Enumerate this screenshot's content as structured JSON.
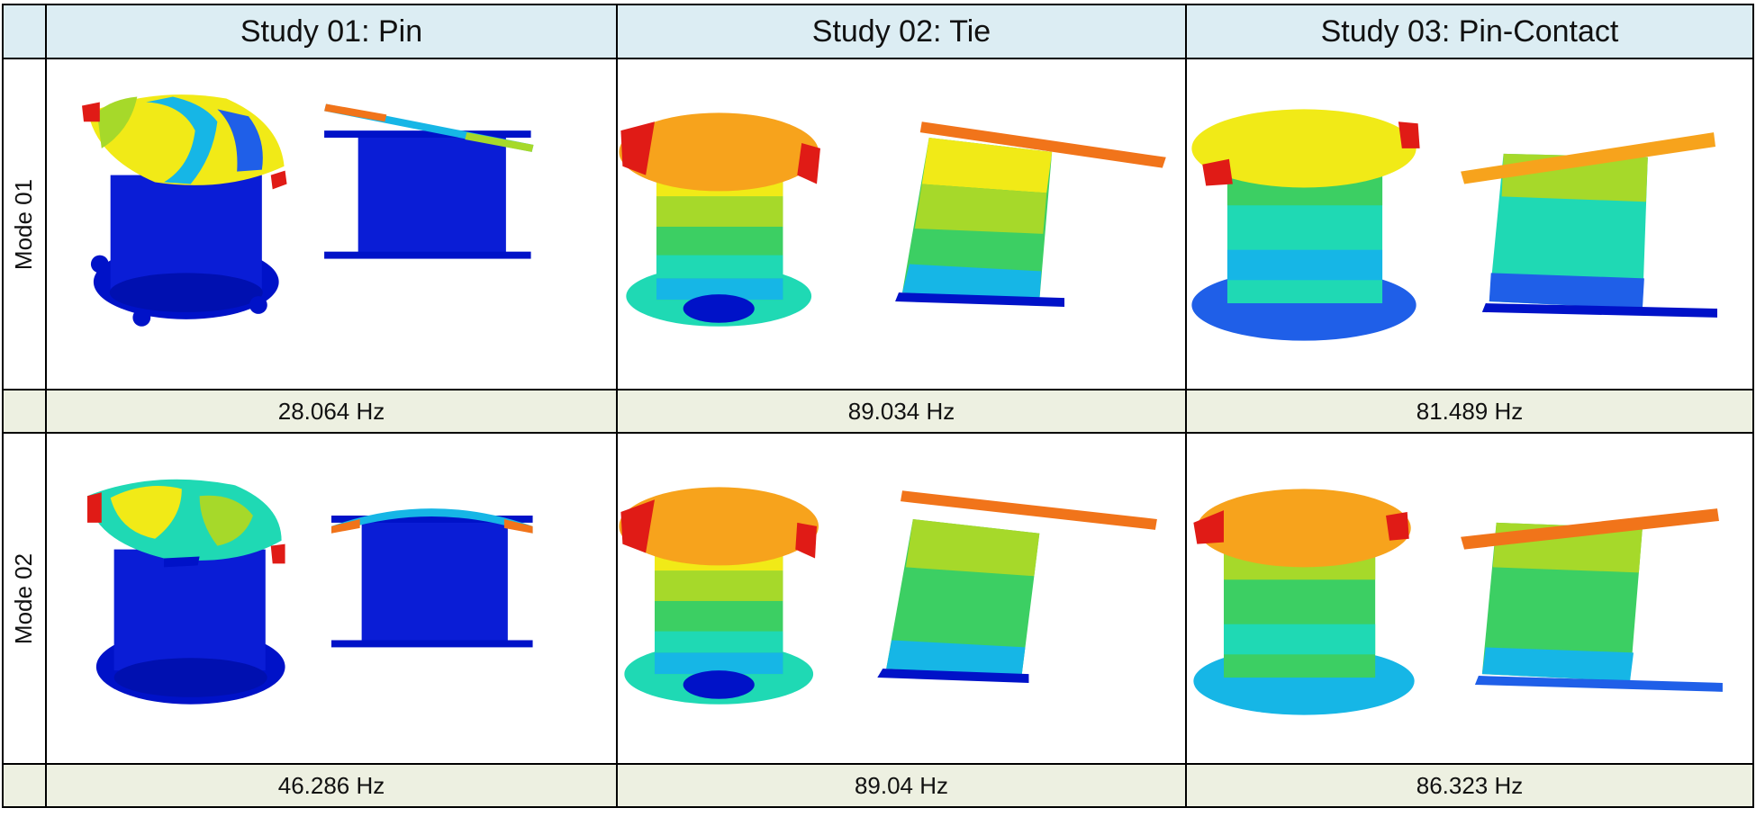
{
  "headers": [
    "Study 01: Pin",
    "Study 02: Tie",
    "Study 03: Pin-Contact"
  ],
  "rows": [
    {
      "mode": "Mode 01",
      "freqs": [
        "28.064 Hz",
        "89.034 Hz",
        "81.489 Hz"
      ]
    },
    {
      "mode": "Mode 02",
      "freqs": [
        "46.286 Hz",
        "89.04 Hz",
        "86.323 Hz"
      ]
    }
  ],
  "colors": {
    "header_bg": "#dcedf3",
    "freq_bg": "#edf0e1",
    "contour_scale": [
      "#0012c8",
      "#1f5fe8",
      "#16b6e6",
      "#1fd9b4",
      "#3ccf63",
      "#a6d92a",
      "#f1ea17",
      "#f7a31c",
      "#f1741a",
      "#e01b16"
    ]
  }
}
